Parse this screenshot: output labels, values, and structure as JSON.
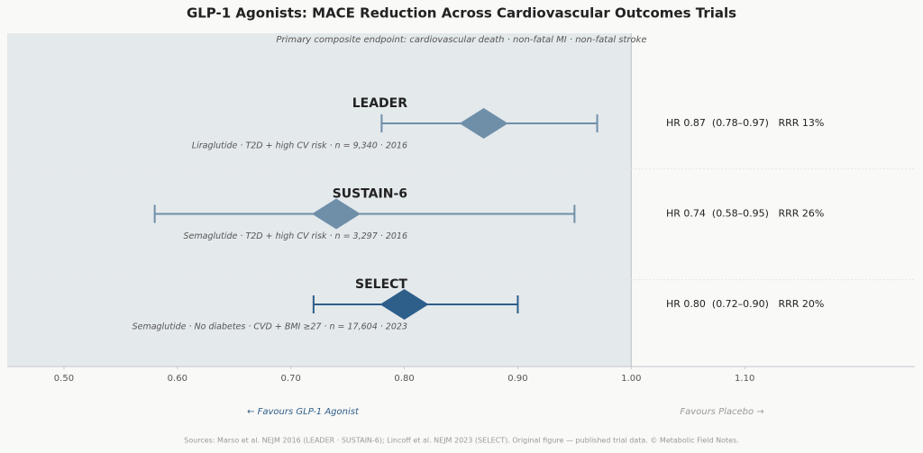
{
  "chart_data": {
    "type": "forest",
    "title": "GLP-1 Agonists: MACE Reduction Across Cardiovascular Outcomes Trials",
    "subtitle": "Primary composite endpoint: cardiovascular death · non-fatal MI · non-fatal stroke",
    "categories": [
      "LEADER",
      "SUSTAIN-6",
      "SELECT"
    ],
    "descriptions": [
      "Liraglutide  ·  T2D + high CV risk  ·  n = 9,340  ·  2016",
      "Semaglutide  ·  T2D + high CV risk  ·  n = 3,297  ·  2016",
      "Semaglutide  ·  No diabetes · CVD + BMI ≥27  ·  n = 17,604  ·  2023"
    ],
    "values": [
      0.87,
      0.74,
      0.8
    ],
    "lower": [
      0.78,
      0.58,
      0.72
    ],
    "upper": [
      0.97,
      0.95,
      0.9
    ],
    "value_labels": [
      "HR 0.87  (0.78–0.97)   RRR 13%",
      "HR 0.74  (0.58–0.95)   RRR 26%",
      "HR 0.80  (0.72–0.90)   RRR 20%"
    ],
    "colors": [
      "#6f8fa9",
      "#6f8fa9",
      "#2e5e8a"
    ],
    "reference": 1.0,
    "xlim": [
      0.45,
      1.25
    ],
    "xticks": [
      {
        "value": 0.5,
        "label": "0.50"
      },
      {
        "value": 0.6,
        "label": "0.60"
      },
      {
        "value": 0.7,
        "label": "0.70"
      },
      {
        "value": 0.8,
        "label": "0.80"
      },
      {
        "value": 0.9,
        "label": "0.90"
      },
      {
        "value": 1.0,
        "label": "1.00"
      },
      {
        "value": 1.1,
        "label": "1.10"
      }
    ],
    "left_annotation": "← Favours GLP-1 Agonist",
    "right_annotation": "Favours Placebo →",
    "source": "Sources: Marso et al. NEJM 2016 (LEADER · SUSTAIN-6); Lincoff et al. NEJM 2023 (SELECT). Original figure — published trial data. © Metabolic Field Notes."
  }
}
